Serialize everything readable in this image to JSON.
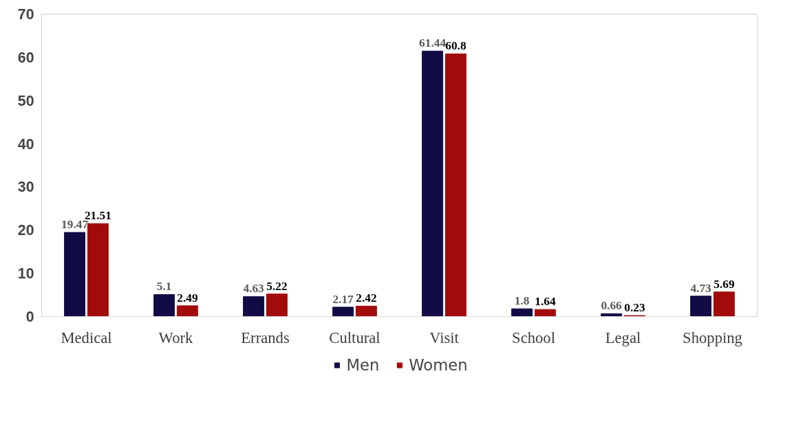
{
  "chart_data": {
    "type": "bar",
    "categories": [
      "Medical",
      "Work",
      "Errands",
      "Cultural",
      "Visit",
      "School",
      "Legal",
      "Shopping"
    ],
    "series": [
      {
        "name": "Men",
        "color": "#110c45",
        "values": [
          19.47,
          5.1,
          4.63,
          2.17,
          61.44,
          1.8,
          0.66,
          4.73
        ]
      },
      {
        "name": "Women",
        "color": "#a30b0b",
        "values": [
          21.51,
          2.49,
          5.22,
          2.42,
          60.8,
          1.64,
          0.23,
          5.69
        ]
      }
    ],
    "ylim": [
      0,
      70
    ],
    "yticks": [
      0,
      10,
      20,
      30,
      40,
      50,
      60,
      70
    ],
    "grid": false,
    "legend": "bottom",
    "data_labels": true
  }
}
